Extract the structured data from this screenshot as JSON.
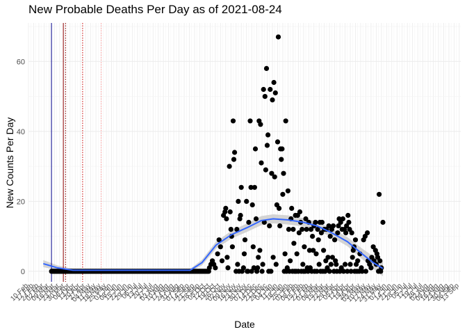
{
  "chart_data": {
    "type": "scatter",
    "title": "New Probable Deaths Per Day as of 2021-08-24",
    "xlabel": "Date",
    "ylabel": "New Counts Per Day",
    "ylim": [
      -3,
      71
    ],
    "xlim": [
      "2020-02-10",
      "2021-09-15"
    ],
    "y_ticks": [
      0,
      20,
      40,
      60
    ],
    "x_tick_start": "2020-02-10",
    "x_tick_every_days": 7,
    "x_tick_labels": [
      "10 Feb",
      "17 Feb",
      "24 Feb",
      "02 Mar",
      "09 Mar",
      "16 Mar",
      "23 Mar",
      "30 Mar",
      "06 Apr",
      "13 Apr",
      "20 Apr",
      "27 Apr",
      "04 May",
      "11 May",
      "18 May",
      "25 May",
      "01 Jun",
      "08 Jun",
      "15 Jun",
      "22 Jun",
      "29 Jun",
      "06 Jul",
      "13 Jul",
      "20 Jul",
      "27 Jul",
      "03 Aug",
      "10 Aug",
      "17 Aug",
      "24 Aug",
      "31 Aug",
      "07 Sep",
      "14 Sep",
      "21 Sep",
      "28 Sep",
      "05 Oct",
      "12 Oct",
      "19 Oct",
      "26 Oct",
      "02 Nov",
      "09 Nov",
      "16 Nov",
      "23 Nov",
      "30 Nov",
      "07 Dec",
      "14 Dec",
      "21 Dec",
      "28 Dec",
      "04 Jan",
      "11 Jan",
      "18 Jan",
      "25 Jan",
      "01 Feb",
      "08 Feb",
      "15 Feb",
      "22 Feb",
      "01 Mar",
      "08 Mar",
      "15 Mar",
      "22 Mar",
      "29 Mar",
      "05 Apr",
      "12 Apr",
      "19 Apr",
      "26 Apr",
      "03 May",
      "10 May",
      "17 May",
      "24 May",
      "31 May",
      "07 Jun",
      "14 Jun",
      "21 Jun",
      "28 Jun",
      "05 Jul",
      "12 Jul",
      "19 Jul",
      "26 Jul",
      "02 Aug",
      "09 Aug",
      "16 Aug",
      "23 Aug",
      "30 Aug",
      "06 Sep",
      "13 Sep"
    ],
    "reference_lines": [
      {
        "date": "2020-03-12",
        "color": "#00008b",
        "style": "solid"
      },
      {
        "date": "2020-03-28",
        "color": "#8b0000",
        "style": "solid"
      },
      {
        "date": "2020-03-31",
        "color": "#8b0000",
        "style": "dotted"
      },
      {
        "date": "2020-04-23",
        "color": "#cc0000",
        "style": "dotted"
      },
      {
        "date": "2020-05-18",
        "color": "#ff9999",
        "style": "dotted"
      }
    ],
    "zero_range": [
      "2020-03-12",
      "2020-10-10"
    ],
    "points": [
      [
        "2020-10-11",
        1
      ],
      [
        "2020-10-13",
        2
      ],
      [
        "2020-10-15",
        3
      ],
      [
        "2020-10-17",
        2
      ],
      [
        "2020-10-19",
        1
      ],
      [
        "2020-10-22",
        5
      ],
      [
        "2020-10-24",
        9
      ],
      [
        "2020-10-26",
        7
      ],
      [
        "2020-10-28",
        3
      ],
      [
        "2020-10-30",
        16
      ],
      [
        "2020-11-01",
        17
      ],
      [
        "2020-11-02",
        18
      ],
      [
        "2020-11-03",
        15
      ],
      [
        "2020-11-04",
        4
      ],
      [
        "2020-11-05",
        1
      ],
      [
        "2020-11-07",
        30
      ],
      [
        "2020-11-08",
        17
      ],
      [
        "2020-11-09",
        12
      ],
      [
        "2020-11-10",
        10
      ],
      [
        "2020-11-11",
        7
      ],
      [
        "2020-11-12",
        43
      ],
      [
        "2020-11-13",
        32
      ],
      [
        "2020-11-14",
        34
      ],
      [
        "2020-11-16",
        0
      ],
      [
        "2020-11-17",
        12
      ],
      [
        "2020-11-18",
        2
      ],
      [
        "2020-11-19",
        20
      ],
      [
        "2020-11-20",
        0
      ],
      [
        "2020-11-21",
        15
      ],
      [
        "2020-11-22",
        16
      ],
      [
        "2020-11-23",
        24
      ],
      [
        "2020-11-24",
        0
      ],
      [
        "2020-11-26",
        1
      ],
      [
        "2020-11-27",
        5
      ],
      [
        "2020-11-28",
        9
      ],
      [
        "2020-11-30",
        20
      ],
      [
        "2020-12-01",
        0
      ],
      [
        "2020-12-02",
        0
      ],
      [
        "2020-12-03",
        14
      ],
      [
        "2020-12-05",
        43
      ],
      [
        "2020-12-06",
        24
      ],
      [
        "2020-12-07",
        0
      ],
      [
        "2020-12-08",
        19
      ],
      [
        "2020-12-09",
        7
      ],
      [
        "2020-12-10",
        1
      ],
      [
        "2020-12-11",
        24
      ],
      [
        "2020-12-12",
        35
      ],
      [
        "2020-12-13",
        15
      ],
      [
        "2020-12-14",
        0
      ],
      [
        "2020-12-15",
        1
      ],
      [
        "2020-12-16",
        4
      ],
      [
        "2020-12-17",
        43
      ],
      [
        "2020-12-18",
        6
      ],
      [
        "2020-12-19",
        42
      ],
      [
        "2020-12-20",
        31
      ],
      [
        "2020-12-21",
        0
      ],
      [
        "2020-12-22",
        2
      ],
      [
        "2020-12-23",
        52
      ],
      [
        "2020-12-24",
        14
      ],
      [
        "2020-12-25",
        50
      ],
      [
        "2020-12-26",
        29
      ],
      [
        "2020-12-27",
        58
      ],
      [
        "2020-12-28",
        36
      ],
      [
        "2020-12-29",
        39
      ],
      [
        "2020-12-30",
        0
      ],
      [
        "2020-12-31",
        13
      ],
      [
        "2021-01-01",
        52
      ],
      [
        "2021-01-02",
        0
      ],
      [
        "2021-01-03",
        28
      ],
      [
        "2021-01-04",
        49
      ],
      [
        "2021-01-05",
        4
      ],
      [
        "2021-01-06",
        54
      ],
      [
        "2021-01-07",
        27
      ],
      [
        "2021-01-08",
        51
      ],
      [
        "2021-01-09",
        2
      ],
      [
        "2021-01-10",
        19
      ],
      [
        "2021-01-11",
        37
      ],
      [
        "2021-01-12",
        67
      ],
      [
        "2021-01-13",
        18
      ],
      [
        "2021-01-14",
        13
      ],
      [
        "2021-01-15",
        35
      ],
      [
        "2021-01-16",
        32
      ],
      [
        "2021-01-17",
        35
      ],
      [
        "2021-01-18",
        22
      ],
      [
        "2021-01-19",
        28
      ],
      [
        "2021-01-20",
        0
      ],
      [
        "2021-01-21",
        5
      ],
      [
        "2021-01-22",
        43
      ],
      [
        "2021-01-23",
        0
      ],
      [
        "2021-01-24",
        1
      ],
      [
        "2021-01-25",
        23
      ],
      [
        "2021-01-26",
        12
      ],
      [
        "2021-01-27",
        0
      ],
      [
        "2021-01-28",
        3
      ],
      [
        "2021-01-29",
        15
      ],
      [
        "2021-01-30",
        18
      ],
      [
        "2021-01-31",
        0
      ],
      [
        "2021-02-01",
        12
      ],
      [
        "2021-02-02",
        8
      ],
      [
        "2021-02-03",
        0
      ],
      [
        "2021-02-04",
        16
      ],
      [
        "2021-02-05",
        0
      ],
      [
        "2021-02-06",
        5
      ],
      [
        "2021-02-07",
        16
      ],
      [
        "2021-02-08",
        0
      ],
      [
        "2021-02-09",
        11
      ],
      [
        "2021-02-10",
        17
      ],
      [
        "2021-02-11",
        14
      ],
      [
        "2021-02-12",
        0
      ],
      [
        "2021-02-13",
        12
      ],
      [
        "2021-02-14",
        2
      ],
      [
        "2021-02-15",
        0
      ],
      [
        "2021-02-16",
        7
      ],
      [
        "2021-02-17",
        0
      ],
      [
        "2021-02-18",
        15
      ],
      [
        "2021-02-19",
        12
      ],
      [
        "2021-02-20",
        1
      ],
      [
        "2021-02-21",
        0
      ],
      [
        "2021-02-22",
        14
      ],
      [
        "2021-02-23",
        6
      ],
      [
        "2021-02-24",
        1
      ],
      [
        "2021-02-25",
        12
      ],
      [
        "2021-02-26",
        0
      ],
      [
        "2021-02-27",
        10
      ],
      [
        "2021-02-28",
        6
      ],
      [
        "2021-03-01",
        13
      ],
      [
        "2021-03-02",
        0
      ],
      [
        "2021-03-03",
        14
      ],
      [
        "2021-03-04",
        5
      ],
      [
        "2021-03-05",
        0
      ],
      [
        "2021-03-06",
        12
      ],
      [
        "2021-03-07",
        9
      ],
      [
        "2021-03-08",
        2
      ],
      [
        "2021-03-09",
        14
      ],
      [
        "2021-03-10",
        0
      ],
      [
        "2021-03-11",
        11
      ],
      [
        "2021-03-12",
        14
      ],
      [
        "2021-03-13",
        0
      ],
      [
        "2021-03-14",
        6
      ],
      [
        "2021-03-15",
        12
      ],
      [
        "2021-03-16",
        0
      ],
      [
        "2021-03-17",
        3
      ],
      [
        "2021-03-18",
        12
      ],
      [
        "2021-03-19",
        1
      ],
      [
        "2021-03-20",
        4
      ],
      [
        "2021-03-21",
        13
      ],
      [
        "2021-03-22",
        0
      ],
      [
        "2021-03-23",
        10
      ],
      [
        "2021-03-24",
        2
      ],
      [
        "2021-03-25",
        12
      ],
      [
        "2021-03-26",
        4
      ],
      [
        "2021-03-27",
        13
      ],
      [
        "2021-03-28",
        0
      ],
      [
        "2021-03-29",
        9
      ],
      [
        "2021-03-30",
        3
      ],
      [
        "2021-03-31",
        2
      ],
      [
        "2021-04-01",
        0
      ],
      [
        "2021-04-02",
        11
      ],
      [
        "2021-04-03",
        13
      ],
      [
        "2021-04-04",
        15
      ],
      [
        "2021-04-05",
        0
      ],
      [
        "2021-04-06",
        14
      ],
      [
        "2021-04-07",
        1
      ],
      [
        "2021-04-08",
        12
      ],
      [
        "2021-04-09",
        15
      ],
      [
        "2021-04-10",
        0
      ],
      [
        "2021-04-11",
        12
      ],
      [
        "2021-04-12",
        2
      ],
      [
        "2021-04-13",
        11
      ],
      [
        "2021-04-14",
        13
      ],
      [
        "2021-04-15",
        0
      ],
      [
        "2021-04-16",
        16
      ],
      [
        "2021-04-17",
        14
      ],
      [
        "2021-04-18",
        12
      ],
      [
        "2021-04-19",
        2
      ],
      [
        "2021-04-20",
        0
      ],
      [
        "2021-04-21",
        11
      ],
      [
        "2021-04-22",
        4
      ],
      [
        "2021-04-23",
        6
      ],
      [
        "2021-04-24",
        7
      ],
      [
        "2021-04-25",
        0
      ],
      [
        "2021-04-26",
        9
      ],
      [
        "2021-04-27",
        2
      ],
      [
        "2021-04-28",
        0
      ],
      [
        "2021-04-29",
        3
      ],
      [
        "2021-05-01",
        0
      ],
      [
        "2021-05-02",
        5
      ],
      [
        "2021-05-04",
        1
      ],
      [
        "2021-05-05",
        0
      ],
      [
        "2021-05-07",
        9
      ],
      [
        "2021-05-09",
        10
      ],
      [
        "2021-05-10",
        0
      ],
      [
        "2021-05-12",
        11
      ],
      [
        "2021-05-13",
        3
      ],
      [
        "2021-05-15",
        2
      ],
      [
        "2021-05-17",
        1
      ],
      [
        "2021-05-18",
        4
      ],
      [
        "2021-05-20",
        7
      ],
      [
        "2021-05-21",
        3
      ],
      [
        "2021-05-23",
        6
      ],
      [
        "2021-05-24",
        2
      ],
      [
        "2021-05-25",
        5
      ],
      [
        "2021-05-26",
        4
      ],
      [
        "2021-05-27",
        0
      ],
      [
        "2021-05-28",
        22
      ],
      [
        "2021-05-29",
        3
      ],
      [
        "2021-05-30",
        0
      ],
      [
        "2021-05-31",
        1
      ],
      [
        "2021-06-02",
        14
      ]
    ],
    "smooth_x": [
      "2020-03-01",
      "2020-03-20",
      "2020-04-10",
      "2020-06-01",
      "2020-08-01",
      "2020-09-15",
      "2020-10-01",
      "2020-10-20",
      "2020-11-10",
      "2020-12-01",
      "2020-12-20",
      "2021-01-05",
      "2021-01-25",
      "2021-02-15",
      "2021-03-05",
      "2021-03-25",
      "2021-04-15",
      "2021-05-05",
      "2021-05-20",
      "2021-06-02"
    ],
    "smooth_y": [
      2.2,
      1.0,
      0.3,
      0.3,
      0.3,
      0.3,
      2.5,
      7.5,
      10.5,
      12.5,
      14.5,
      15.0,
      14.7,
      14.0,
      13.0,
      11.0,
      8.5,
      5.0,
      2.5,
      0.8
    ],
    "smooth_band": [
      1.0,
      0.7,
      0.4,
      0.4,
      0.4,
      0.4,
      0.8,
      1.0,
      1.1,
      1.2,
      1.3,
      1.3,
      1.3,
      1.2,
      1.2,
      1.2,
      1.3,
      1.5,
      1.8,
      2.2
    ],
    "colors": {
      "points": "#000000",
      "smooth": "#3366ff",
      "band": "#cccccc",
      "grid_major": "#ebebeb",
      "grid_minor": "#f3f3f3"
    }
  }
}
